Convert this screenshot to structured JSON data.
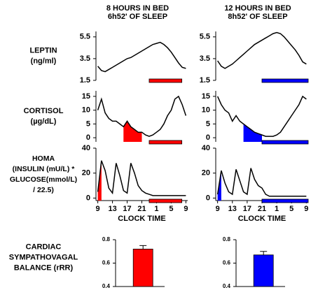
{
  "chart_data": [
    {
      "type": "line",
      "title": [
        "8 HOURS IN BED",
        "6h52' OF SLEEP"
      ],
      "ylabel": [
        "LEPTIN",
        "(ng/ml)"
      ],
      "color": "#ff0000",
      "x": [
        9,
        10,
        11,
        12,
        13,
        14,
        15,
        16,
        17,
        18,
        19,
        20,
        21,
        22,
        23,
        24,
        25,
        26,
        27,
        28,
        29,
        30,
        31,
        32,
        33
      ],
      "series": [
        {
          "color": "#000000",
          "values": [
            2.8,
            2.4,
            2.3,
            2.5,
            2.7,
            2.9,
            3.1,
            3.3,
            3.5,
            3.6,
            3.8,
            4.0,
            4.2,
            4.4,
            4.6,
            4.8,
            4.9,
            5.0,
            4.8,
            4.5,
            4.1,
            3.6,
            3.1,
            2.7,
            2.6
          ]
        }
      ],
      "xlim": [
        8.5,
        33.5
      ],
      "ylim": [
        1.5,
        6
      ],
      "yticks": [
        1.5,
        3.5,
        5.5
      ],
      "sleep_period": [
        23,
        31.9
      ]
    },
    {
      "type": "line",
      "title": [
        "12 HOURS IN BED",
        "8h52' OF SLEEP"
      ],
      "color": "#0000ff",
      "x": [
        9,
        10,
        11,
        12,
        13,
        14,
        15,
        16,
        17,
        18,
        19,
        20,
        21,
        22,
        23,
        24,
        25,
        26,
        27,
        28,
        29,
        30,
        31,
        32,
        33
      ],
      "series": [
        {
          "color": "#000000",
          "values": [
            3.3,
            2.8,
            2.6,
            2.8,
            3.0,
            3.3,
            3.6,
            3.9,
            4.2,
            4.5,
            4.8,
            5.0,
            5.2,
            5.4,
            5.6,
            5.8,
            5.9,
            5.8,
            5.5,
            5.1,
            4.7,
            4.3,
            3.8,
            3.2,
            3.0
          ]
        }
      ],
      "xlim": [
        8.5,
        33.5
      ],
      "ylim": [
        1.5,
        6
      ],
      "yticks": [
        1.5,
        3.5,
        5.5
      ],
      "sleep_period": [
        21,
        33.9
      ]
    },
    {
      "type": "line",
      "ylabel": [
        "CORTISOL",
        "(µg/dL)"
      ],
      "color": "#ff0000",
      "x": [
        9,
        10,
        11,
        12,
        13,
        14,
        15,
        16,
        17,
        18,
        19,
        20,
        21,
        22,
        23,
        24,
        25,
        26,
        27,
        28,
        29,
        30,
        31,
        32,
        33
      ],
      "series": [
        {
          "color": "#000000",
          "values": [
            10,
            14,
            9,
            7,
            6,
            6,
            5,
            4,
            6,
            4,
            3,
            2,
            2,
            1,
            0.5,
            1,
            2,
            3,
            5,
            8,
            10,
            14,
            15,
            12,
            8
          ]
        }
      ],
      "xlim": [
        8.5,
        33.5
      ],
      "ylim": [
        -1.5,
        17
      ],
      "yticks": [
        0,
        5,
        10,
        15
      ],
      "sleep_period": [
        23,
        31.9
      ],
      "shade": [
        16,
        21
      ]
    },
    {
      "type": "line",
      "color": "#0000ff",
      "x": [
        9,
        10,
        11,
        12,
        13,
        14,
        15,
        16,
        17,
        18,
        19,
        20,
        21,
        22,
        23,
        24,
        25,
        26,
        27,
        28,
        29,
        30,
        31,
        32,
        33
      ],
      "series": [
        {
          "color": "#000000",
          "values": [
            15,
            12,
            10,
            9,
            6,
            8,
            6,
            5,
            4,
            3,
            2,
            1.5,
            1,
            0.5,
            0.5,
            0.5,
            1,
            2,
            4,
            6,
            8,
            10,
            12,
            15,
            14
          ]
        }
      ],
      "xlim": [
        8.5,
        33.5
      ],
      "ylim": [
        -1.5,
        17
      ],
      "yticks": [
        0,
        5,
        10,
        15
      ],
      "sleep_period": [
        21,
        33.9
      ],
      "shade": [
        16,
        21
      ]
    },
    {
      "type": "line",
      "ylabel": [
        "HOMA",
        "(INSULIN (mU/L) *",
        "GLUCOSE(mmol/L)",
        "/ 22.5)"
      ],
      "xlabel": "CLOCK TIME",
      "color": "#ff0000",
      "x": [
        9,
        10,
        11,
        12,
        13,
        14,
        15,
        16,
        17,
        18,
        19,
        20,
        21,
        22,
        23,
        24,
        25,
        26,
        27,
        28,
        29,
        30,
        31,
        32,
        33
      ],
      "series": [
        {
          "color": "#000000",
          "values": [
            5,
            30,
            22,
            8,
            4,
            28,
            18,
            6,
            4,
            28,
            20,
            10,
            6,
            4,
            3,
            2,
            2,
            2,
            2,
            2,
            2,
            2,
            2,
            2,
            2
          ]
        }
      ],
      "xlim": [
        8.5,
        33.5
      ],
      "ylim": [
        -2,
        40
      ],
      "yticks": [
        0,
        20,
        40
      ],
      "xticks": [
        9,
        13,
        17,
        21,
        {
          "value": 25,
          "label": "1"
        },
        {
          "value": 29,
          "label": "5"
        },
        {
          "value": 33,
          "label": "9"
        }
      ],
      "sleep_period": [
        23,
        31.9
      ],
      "shade": [
        9,
        10
      ]
    },
    {
      "type": "line",
      "xlabel": "CLOCK TIME",
      "color": "#0000ff",
      "x": [
        9,
        10,
        11,
        12,
        13,
        14,
        15,
        16,
        17,
        18,
        19,
        20,
        21,
        22,
        23,
        24,
        25,
        26,
        27,
        28,
        29,
        30,
        31,
        32,
        33
      ],
      "series": [
        {
          "color": "#000000",
          "values": [
            3,
            22,
            12,
            5,
            3,
            23,
            14,
            5,
            3,
            24,
            15,
            10,
            8,
            3,
            1.5,
            1.5,
            1.5,
            1.5,
            1.5,
            1.5,
            1.5,
            1.5,
            1.5,
            1.5,
            1.5
          ]
        }
      ],
      "xlim": [
        8.5,
        33.5
      ],
      "ylim": [
        -2,
        40
      ],
      "yticks": [
        0,
        20,
        40
      ],
      "xticks": [
        9,
        13,
        17,
        21,
        {
          "value": 25,
          "label": "1"
        },
        {
          "value": 29,
          "label": "5"
        },
        {
          "value": 33,
          "label": "9"
        }
      ],
      "sleep_period": [
        21,
        33.9
      ],
      "shade": [
        9,
        10
      ]
    },
    {
      "type": "bar",
      "ylabel": [
        "CARDIAC",
        "SYMPATHOVAGAL",
        "BALANCE (rRR)"
      ],
      "color": "#ff0000",
      "values": [
        0.72
      ],
      "errors": [
        0.03
      ],
      "ylim": [
        0.4,
        0.8
      ],
      "yticks": [
        0.4,
        0.6,
        0.8
      ]
    },
    {
      "type": "bar",
      "color": "#0000ff",
      "values": [
        0.67
      ],
      "errors": [
        0.03
      ],
      "ylim": [
        0.4,
        0.8
      ],
      "yticks": [
        0.4,
        0.6,
        0.8
      ]
    }
  ]
}
